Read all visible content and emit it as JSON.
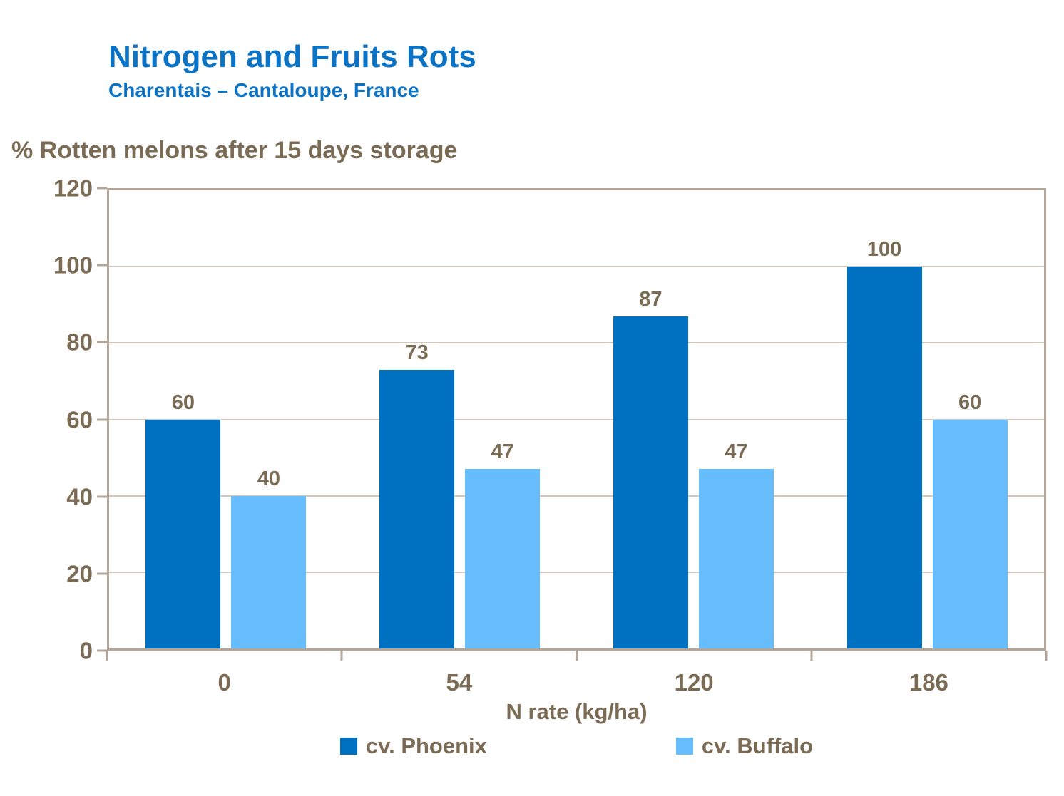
{
  "title": "Nitrogen and Fruits Rots",
  "subtitle": "Charentais – Cantaloupe, France",
  "chart_data": {
    "type": "bar",
    "title": "Nitrogen and Fruits Rots",
    "subtitle": "Charentais – Cantaloupe, France",
    "ylabel": "% Rotten melons after 15 days storage",
    "xlabel": "N rate (kg/ha)",
    "categories": [
      "0",
      "54",
      "120",
      "186"
    ],
    "series": [
      {
        "name": "cv. Phoenix",
        "color": "#0070c0",
        "values": [
          60,
          73,
          87,
          100
        ]
      },
      {
        "name": "cv. Buffalo",
        "color": "#67bdfb",
        "values": [
          40,
          47,
          47,
          60
        ]
      }
    ],
    "ylim": [
      0,
      120
    ],
    "yticks": [
      0,
      20,
      40,
      60,
      80,
      100,
      120
    ],
    "grid": true,
    "data_labels": true,
    "legend_position": "bottom"
  },
  "colors": {
    "title_blue": "#0b72c4",
    "axis_text_brown": "#7b6b54",
    "gridline": "#cfc7bb",
    "plot_border": "#b3a698",
    "background": "#ffffff"
  }
}
